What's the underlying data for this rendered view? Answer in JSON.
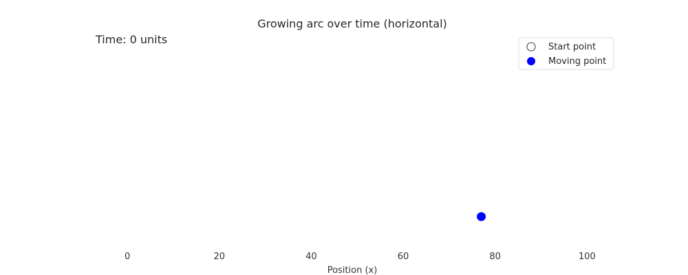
{
  "chart_data": {
    "type": "scatter",
    "title": "Growing arc over time (horizontal)",
    "annotation": "Time: 0 units",
    "xlabel": "Position (x)",
    "ylabel": "",
    "xlim": [
      -9,
      107
    ],
    "ylim": [
      0,
      1
    ],
    "x_ticks": [
      0,
      20,
      40,
      60,
      80,
      100
    ],
    "x_tick_labels": [
      "0",
      "20",
      "40",
      "60",
      "80",
      "100"
    ],
    "grid": false,
    "legend_position": "top-right",
    "series": [
      {
        "name": "Start point",
        "marker": "hollow-circle",
        "color": "#000000",
        "points": []
      },
      {
        "name": "Moving point",
        "marker": "filled-circle",
        "color": "#0000ff",
        "points": [
          {
            "x": 77,
            "y": 0.13
          }
        ]
      }
    ]
  }
}
